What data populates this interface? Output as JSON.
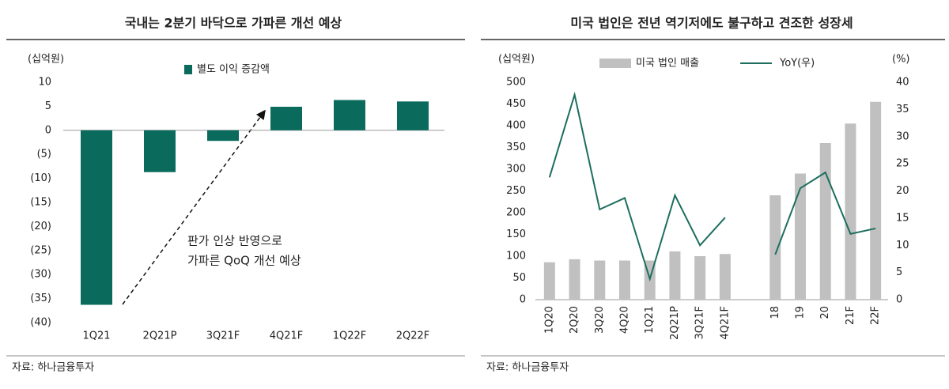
{
  "chart_data": [
    {
      "type": "bar",
      "title": "국내는 2분기 바닥으로 가파른 개선 예상",
      "ylabel": "(십억원)",
      "categories": [
        "1Q21",
        "2Q21P",
        "3Q21F",
        "4Q21F",
        "1Q22F",
        "2Q22F"
      ],
      "series": [
        {
          "name": "별도 이익 증감액",
          "color": "#0a6b5d",
          "kind": "bar",
          "values": [
            -36.3,
            -8.7,
            -2.2,
            4.9,
            6.3,
            6.0
          ]
        }
      ],
      "ylim": [
        -40,
        10
      ],
      "yticks": [
        10,
        5,
        0,
        {
          "value": -5,
          "label": "(5)"
        },
        {
          "value": -10,
          "label": "(10)"
        },
        {
          "value": -15,
          "label": "(15)"
        },
        {
          "value": -20,
          "label": "(20)"
        },
        {
          "value": -25,
          "label": "(25)"
        },
        {
          "value": -30,
          "label": "(30)"
        },
        {
          "value": -35,
          "label": "(35)"
        },
        {
          "value": -40,
          "label": "(40)"
        }
      ],
      "annotation": [
        "판가 인상 반영으로",
        "가파른 QoQ 개선 예상"
      ],
      "source": "자료: 하나금융투자"
    },
    {
      "type": "combo",
      "title": "미국 법인은 전년 역기저에도 불구하고 견조한 성장세",
      "ylabel": "(십억원)",
      "y2label": "(%)",
      "categories": [
        "1Q20",
        "2Q20",
        "3Q20",
        "4Q20",
        "1Q21",
        "2Q21P",
        "3Q21F",
        "4Q21F",
        null,
        "18",
        "19",
        "20",
        "21F",
        "22F"
      ],
      "series": [
        {
          "name": "미국 법인 매출",
          "color": "#c0c0c0",
          "kind": "bar",
          "values": [
            86,
            93,
            90,
            90,
            90,
            111,
            100,
            105,
            null,
            240,
            290,
            360,
            405,
            455
          ]
        },
        {
          "name": "YoY(우)",
          "color": "#1d6e5e",
          "kind": "line",
          "axis": "y2",
          "values": [
            22.5,
            37.7,
            16.6,
            18.7,
            3.8,
            19.2,
            10.0,
            15.1,
            null,
            8.3,
            20.5,
            23.4,
            12.1,
            13.1
          ]
        }
      ],
      "ylim": [
        0,
        500
      ],
      "yticks": [
        0,
        50,
        100,
        150,
        200,
        250,
        300,
        350,
        400,
        450,
        500
      ],
      "y2lim": [
        0,
        40
      ],
      "y2ticks": [
        0,
        5,
        10,
        15,
        20,
        25,
        30,
        35,
        40
      ],
      "source": "자료: 하나금융투자"
    }
  ]
}
